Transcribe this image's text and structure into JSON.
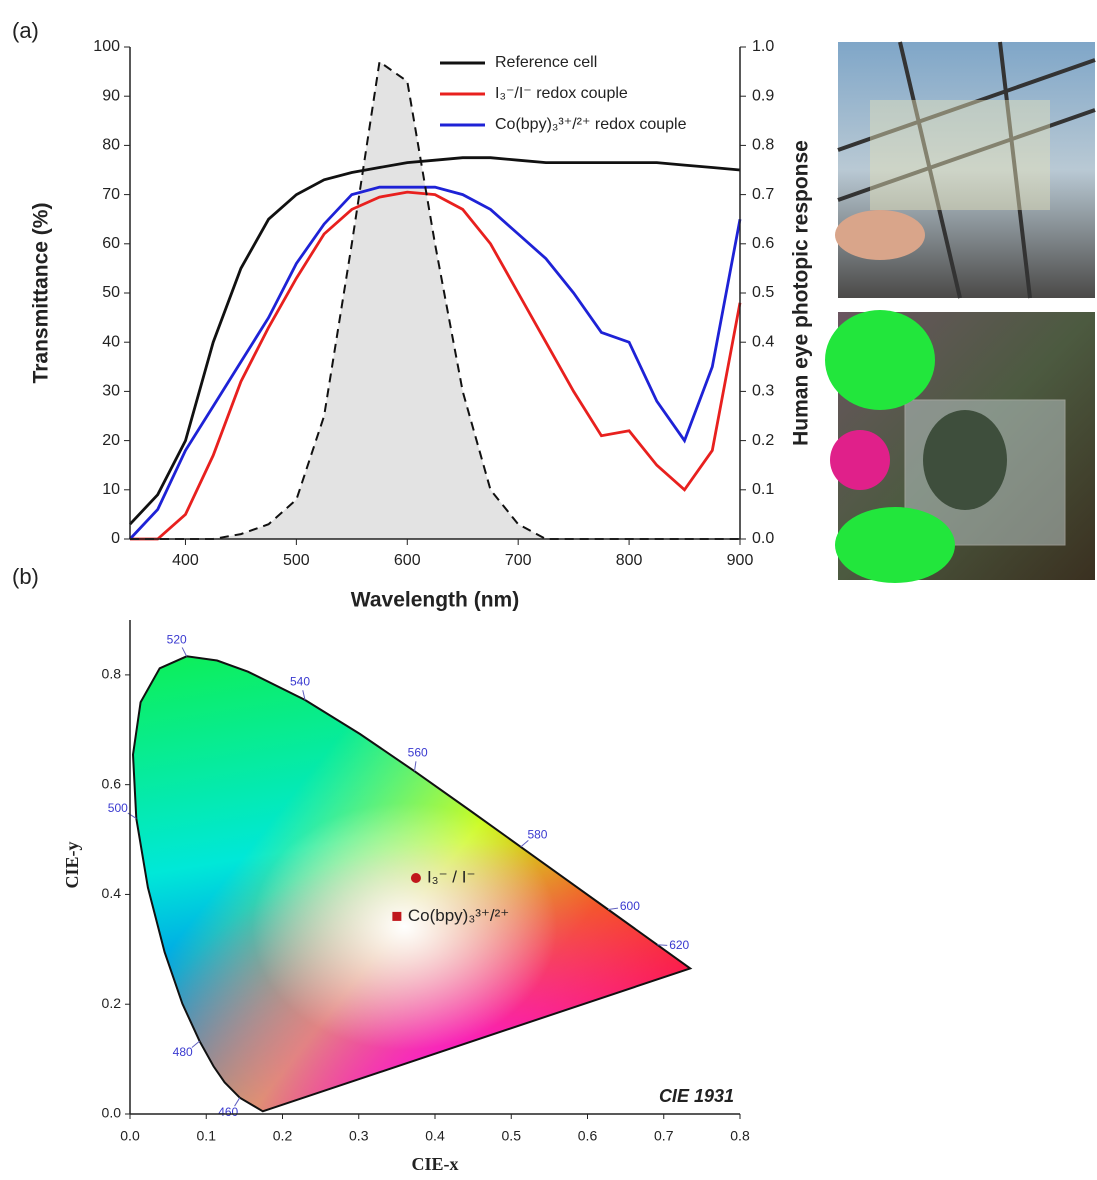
{
  "chart_data": [
    {
      "type": "line",
      "panel_label": "(a)",
      "x_label": "Wavelength (nm)",
      "y_label": "Transmittance (%)",
      "y2_label": "Human eye photopic response",
      "x": [
        350,
        375,
        400,
        425,
        450,
        475,
        500,
        525,
        550,
        575,
        600,
        625,
        650,
        675,
        700,
        725,
        750,
        775,
        800,
        825,
        850,
        875,
        900
      ],
      "xlim": [
        350,
        900
      ],
      "xticks": [
        400,
        500,
        600,
        700,
        800,
        900
      ],
      "ylim": [
        0,
        100
      ],
      "yticks": [
        0,
        10,
        20,
        30,
        40,
        50,
        60,
        70,
        80,
        90,
        100
      ],
      "y2lim": [
        0,
        1
      ],
      "y2ticks": [
        {
          "value": 0,
          "label": "0.0"
        },
        0.1,
        0.2,
        0.3,
        0.4,
        0.5,
        0.6,
        0.7,
        0.8,
        0.9,
        {
          "value": 1,
          "label": "1.0"
        }
      ],
      "legend": "top-right",
      "series": [
        {
          "name": "Reference cell",
          "color": "#111111",
          "values": [
            3,
            9,
            20,
            40,
            55,
            65,
            70,
            73,
            74.5,
            75.5,
            76.5,
            77,
            77.5,
            77.5,
            77,
            76.5,
            76.5,
            76.5,
            76.5,
            76.5,
            76,
            75.5,
            75
          ]
        },
        {
          "name": "I₃⁻/I⁻ redox couple",
          "color": "#e8201e",
          "values": [
            0,
            0,
            5,
            17,
            32,
            43,
            53,
            62,
            67,
            69.5,
            70.5,
            70,
            67,
            60,
            50,
            40,
            30,
            21,
            22,
            15,
            10,
            18,
            48
          ]
        },
        {
          "name": "Co(bpy)₃³⁺/²⁺ redox couple",
          "color": "#1e22d6",
          "values": [
            0,
            6,
            18,
            27,
            36,
            45,
            56,
            64,
            70,
            71.5,
            71.5,
            71.5,
            70,
            67,
            62,
            57,
            50,
            42,
            40,
            28,
            20,
            35,
            65
          ]
        },
        {
          "color": "#111111",
          "fill": "#e3e3e3",
          "dashed": true,
          "axis": "y2",
          "values": [
            0,
            0,
            0,
            0,
            0.01,
            0.03,
            0.08,
            0.25,
            0.6,
            0.97,
            0.93,
            0.6,
            0.3,
            0.1,
            0.03,
            0,
            0,
            0,
            0,
            0,
            0,
            0,
            0
          ]
        }
      ]
    },
    {
      "type": "scatter",
      "panel_label": "(b)",
      "x_label": "CIE-x",
      "y_label": "CIE-y",
      "annotation": "CIE 1931",
      "xlim": [
        0,
        0.8
      ],
      "xticks": [
        {
          "value": 0,
          "label": "0.0"
        },
        0.1,
        0.2,
        0.3,
        0.4,
        0.5,
        0.6,
        0.7,
        0.8
      ],
      "ylim": [
        0,
        0.9
      ],
      "yticks": [
        {
          "value": 0,
          "label": "0.0"
        },
        0.2,
        0.4,
        0.6,
        0.8
      ],
      "locus": {
        "wavelengths": [
          null,
          460,
          null,
          null,
          480,
          null,
          null,
          null,
          500,
          null,
          null,
          null,
          520,
          null,
          null,
          540,
          null,
          560,
          null,
          580,
          null,
          600,
          620,
          null
        ],
        "x": [
          0.1741,
          0.144,
          0.1241,
          0.1096,
          0.0913,
          0.0687,
          0.0454,
          0.0235,
          0.0082,
          0.0039,
          0.0139,
          0.0389,
          0.0743,
          0.1142,
          0.1547,
          0.2296,
          0.3016,
          0.3731,
          0.4441,
          0.5125,
          0.5752,
          0.627,
          0.6915,
          0.7347
        ],
        "y": [
          0.005,
          0.0297,
          0.0578,
          0.0868,
          0.1327,
          0.2007,
          0.295,
          0.4127,
          0.5384,
          0.6548,
          0.7502,
          0.812,
          0.8338,
          0.8262,
          0.8059,
          0.7543,
          0.6923,
          0.6245,
          0.5547,
          0.4866,
          0.4242,
          0.3725,
          0.3083,
          0.2653
        ]
      },
      "series": [
        {
          "name": "I₃⁻ / I⁻",
          "color": "#c0171c",
          "marker": "circle",
          "x": [
            0.375
          ],
          "values": [
            0.43
          ]
        },
        {
          "name": "Co(bpy)₃³⁺/²⁺",
          "color": "#c0171c",
          "marker": "square",
          "x": [
            0.35
          ],
          "values": [
            0.36
          ]
        }
      ]
    }
  ]
}
